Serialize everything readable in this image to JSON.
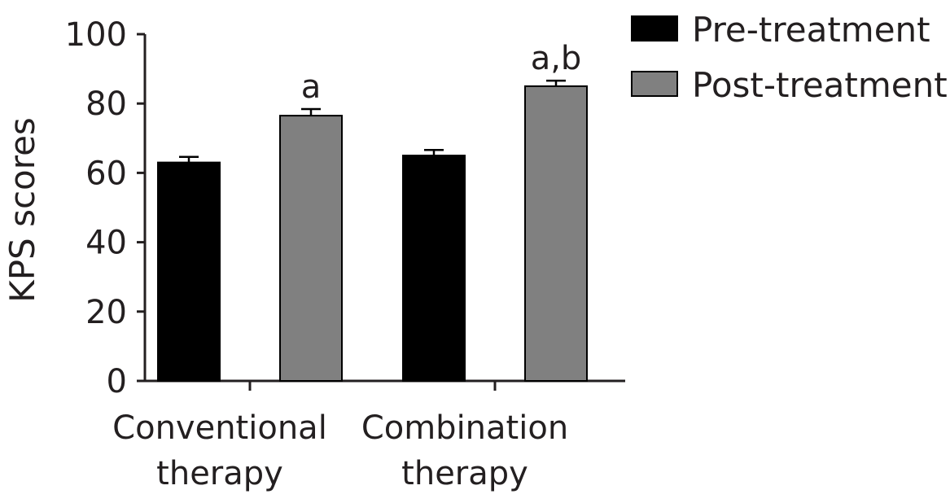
{
  "chart_data": {
    "type": "bar",
    "ylabel": "KPS scores",
    "xlabel": "",
    "ylim": [
      0,
      100
    ],
    "yticks": [
      0,
      20,
      40,
      60,
      80,
      100
    ],
    "categories": [
      {
        "line1": "Conventional",
        "line2": "therapy"
      },
      {
        "line1": "Combination",
        "line2": "therapy"
      }
    ],
    "series": [
      {
        "name": "Pre-treatment",
        "color": "#000000",
        "values": [
          63,
          65
        ],
        "errors": [
          1.6,
          1.6
        ]
      },
      {
        "name": "Post-treatment",
        "color": "#808080",
        "values": [
          76.5,
          85
        ],
        "errors": [
          1.9,
          1.6
        ]
      }
    ],
    "annotations": [
      {
        "category_index": 0,
        "series_index": 1,
        "text": "a"
      },
      {
        "category_index": 1,
        "series_index": 1,
        "text": "a,b"
      }
    ],
    "legend_position": "top-right",
    "grid": false
  }
}
